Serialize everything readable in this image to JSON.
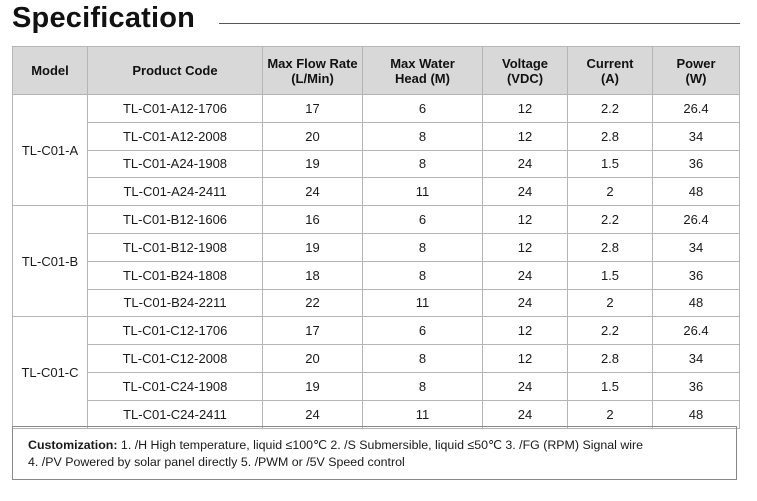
{
  "title": "Specification",
  "headers": {
    "model": "Model",
    "product_code": "Product Code",
    "flow": [
      "Max Flow Rate",
      "(L/Min)"
    ],
    "head": [
      "Max Water",
      "Head (M)"
    ],
    "voltage": [
      "Voltage",
      "(VDC)"
    ],
    "current": [
      "Current",
      "(A)"
    ],
    "power": [
      "Power",
      "(W)"
    ]
  },
  "groups": [
    {
      "model": "TL-C01-A",
      "rows": [
        {
          "code": "TL-C01-A12-1706",
          "flow": "17",
          "head": "6",
          "voltage": "12",
          "current": "2.2",
          "power": "26.4"
        },
        {
          "code": "TL-C01-A12-2008",
          "flow": "20",
          "head": "8",
          "voltage": "12",
          "current": "2.8",
          "power": "34"
        },
        {
          "code": "TL-C01-A24-1908",
          "flow": "19",
          "head": "8",
          "voltage": "24",
          "current": "1.5",
          "power": "36"
        },
        {
          "code": "TL-C01-A24-2411",
          "flow": "24",
          "head": "11",
          "voltage": "24",
          "current": "2",
          "power": "48"
        }
      ]
    },
    {
      "model": "TL-C01-B",
      "rows": [
        {
          "code": "TL-C01-B12-1606",
          "flow": "16",
          "head": "6",
          "voltage": "12",
          "current": "2.2",
          "power": "26.4"
        },
        {
          "code": "TL-C01-B12-1908",
          "flow": "19",
          "head": "8",
          "voltage": "12",
          "current": "2.8",
          "power": "34"
        },
        {
          "code": "TL-C01-B24-1808",
          "flow": "18",
          "head": "8",
          "voltage": "24",
          "current": "1.5",
          "power": "36"
        },
        {
          "code": "TL-C01-B24-2211",
          "flow": "22",
          "head": "11",
          "voltage": "24",
          "current": "2",
          "power": "48"
        }
      ]
    },
    {
      "model": "TL-C01-C",
      "rows": [
        {
          "code": "TL-C01-C12-1706",
          "flow": "17",
          "head": "6",
          "voltage": "12",
          "current": "2.2",
          "power": "26.4"
        },
        {
          "code": "TL-C01-C12-2008",
          "flow": "20",
          "head": "8",
          "voltage": "12",
          "current": "2.8",
          "power": "34"
        },
        {
          "code": "TL-C01-C24-1908",
          "flow": "19",
          "head": "8",
          "voltage": "24",
          "current": "1.5",
          "power": "36"
        },
        {
          "code": "TL-C01-C24-2411",
          "flow": "24",
          "head": "11",
          "voltage": "24",
          "current": "2",
          "power": "48"
        }
      ]
    }
  ],
  "notes": {
    "label": "Customization:",
    "line1": " 1. /H High temperature, liquid ≤100℃   2. /S Submersible, liquid ≤50℃   3.  /FG (RPM) Signal wire",
    "line2": "4. /PV Powered by solar panel directly    5. /PWM or /5V Speed control"
  }
}
